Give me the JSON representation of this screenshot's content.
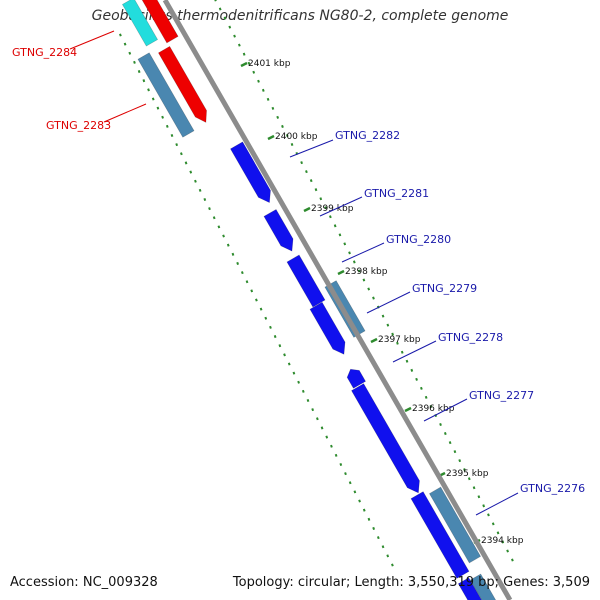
{
  "title": "Geobacillus thermodenitrificans NG80-2, complete genome",
  "footer": {
    "accession_label": "Accession:",
    "accession": "NC_009328",
    "summary": "Topology: circular; Length: 3,550,319 bp; Genes: 3,509"
  },
  "colors": {
    "backbone": "#8c8c8c",
    "tick": "#2e8b2e",
    "label_red": "#dd0000",
    "label_blue": "#1a1aaa",
    "gene_blue": "#1010ee",
    "gene_steel": "#4a87b0",
    "gene_red": "#ee0000",
    "gene_cyan": "#22dddd"
  },
  "ticks": [
    {
      "label": "2401 kbp"
    },
    {
      "label": "2400 kbp"
    },
    {
      "label": "2399 kbp"
    },
    {
      "label": "2398 kbp"
    },
    {
      "label": "2397 kbp"
    },
    {
      "label": "2396 kbp"
    },
    {
      "label": "2395 kbp"
    },
    {
      "label": "2394 kbp"
    }
  ],
  "gene_labels": [
    {
      "name": "GTNG_2284",
      "color": "red"
    },
    {
      "name": "GTNG_2283",
      "color": "red"
    },
    {
      "name": "GTNG_2282",
      "color": "blue"
    },
    {
      "name": "GTNG_2281",
      "color": "blue"
    },
    {
      "name": "GTNG_2280",
      "color": "blue"
    },
    {
      "name": "GTNG_2279",
      "color": "blue"
    },
    {
      "name": "GTNG_2278",
      "color": "blue"
    },
    {
      "name": "GTNG_2277",
      "color": "blue"
    },
    {
      "name": "GTNG_2276",
      "color": "blue"
    }
  ]
}
